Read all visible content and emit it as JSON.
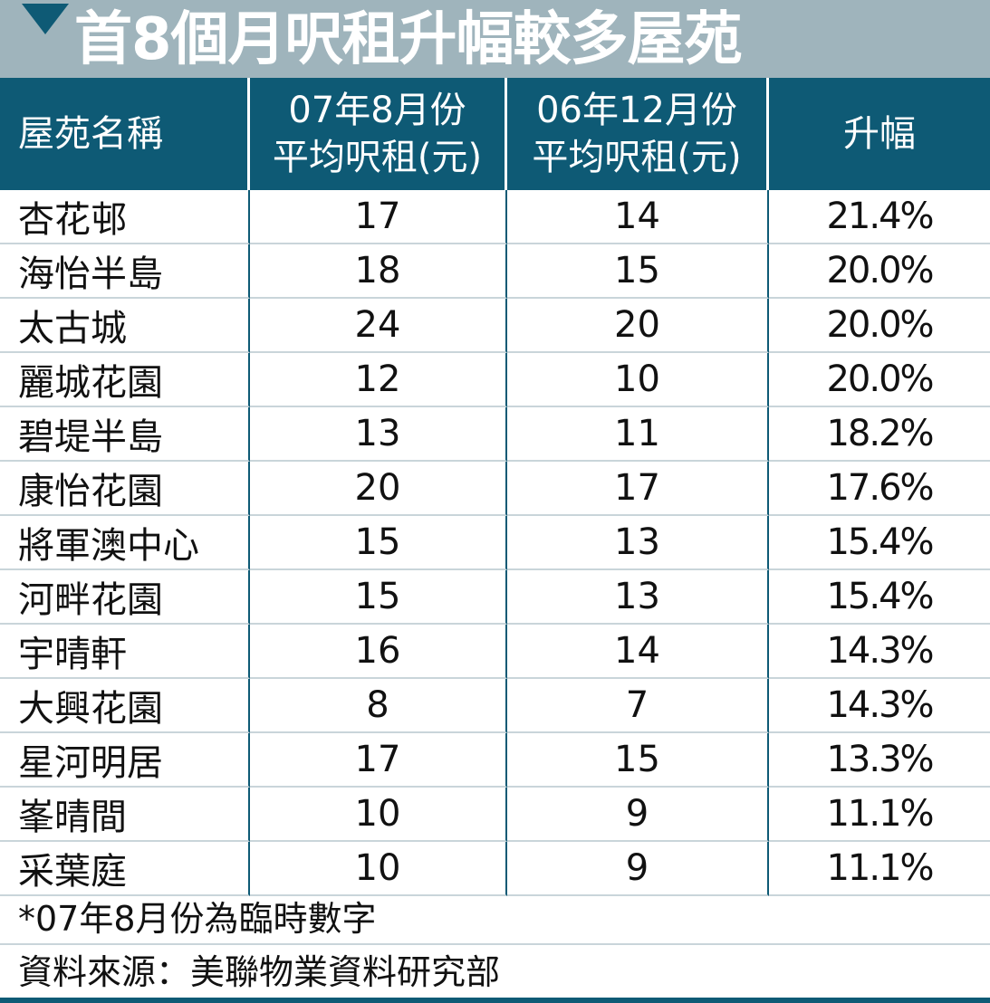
{
  "title": "首8個月呎租升幅較多屋苑",
  "colors": {
    "header_bg": "#0e5a75",
    "title_bg": "#9fb4bc",
    "row_rule": "#c9d5da"
  },
  "chart_data": {
    "type": "table",
    "title": "首8個月呎租升幅較多屋苑",
    "columns": [
      {
        "line1": "屋苑名稱",
        "line2": ""
      },
      {
        "line1": "07年8月份",
        "line2": "平均呎租(元)"
      },
      {
        "line1": "06年12月份",
        "line2": "平均呎租(元)"
      },
      {
        "line1": "升幅",
        "line2": ""
      }
    ],
    "rows": [
      {
        "estate": "杏花邨",
        "rent_aug07": 17,
        "rent_dec06": 14,
        "increase": "21.4%"
      },
      {
        "estate": "海怡半島",
        "rent_aug07": 18,
        "rent_dec06": 15,
        "increase": "20.0%"
      },
      {
        "estate": "太古城",
        "rent_aug07": 24,
        "rent_dec06": 20,
        "increase": "20.0%"
      },
      {
        "estate": "麗城花園",
        "rent_aug07": 12,
        "rent_dec06": 10,
        "increase": "20.0%"
      },
      {
        "estate": "碧堤半島",
        "rent_aug07": 13,
        "rent_dec06": 11,
        "increase": "18.2%"
      },
      {
        "estate": "康怡花園",
        "rent_aug07": 20,
        "rent_dec06": 17,
        "increase": "17.6%"
      },
      {
        "estate": "將軍澳中心",
        "rent_aug07": 15,
        "rent_dec06": 13,
        "increase": "15.4%"
      },
      {
        "estate": "河畔花園",
        "rent_aug07": 15,
        "rent_dec06": 13,
        "increase": "15.4%"
      },
      {
        "estate": "宇晴軒",
        "rent_aug07": 16,
        "rent_dec06": 14,
        "increase": "14.3%"
      },
      {
        "estate": "大興花園",
        "rent_aug07": 8,
        "rent_dec06": 7,
        "increase": "14.3%"
      },
      {
        "estate": "星河明居",
        "rent_aug07": 17,
        "rent_dec06": 15,
        "increase": "13.3%"
      },
      {
        "estate": "峯晴間",
        "rent_aug07": 10,
        "rent_dec06": 9,
        "increase": "11.1%"
      },
      {
        "estate": "采葉庭",
        "rent_aug07": 10,
        "rent_dec06": 9,
        "increase": "11.1%"
      }
    ]
  },
  "footnote": "*07年8月份為臨時數字",
  "source": "資料來源：美聯物業資料研究部"
}
